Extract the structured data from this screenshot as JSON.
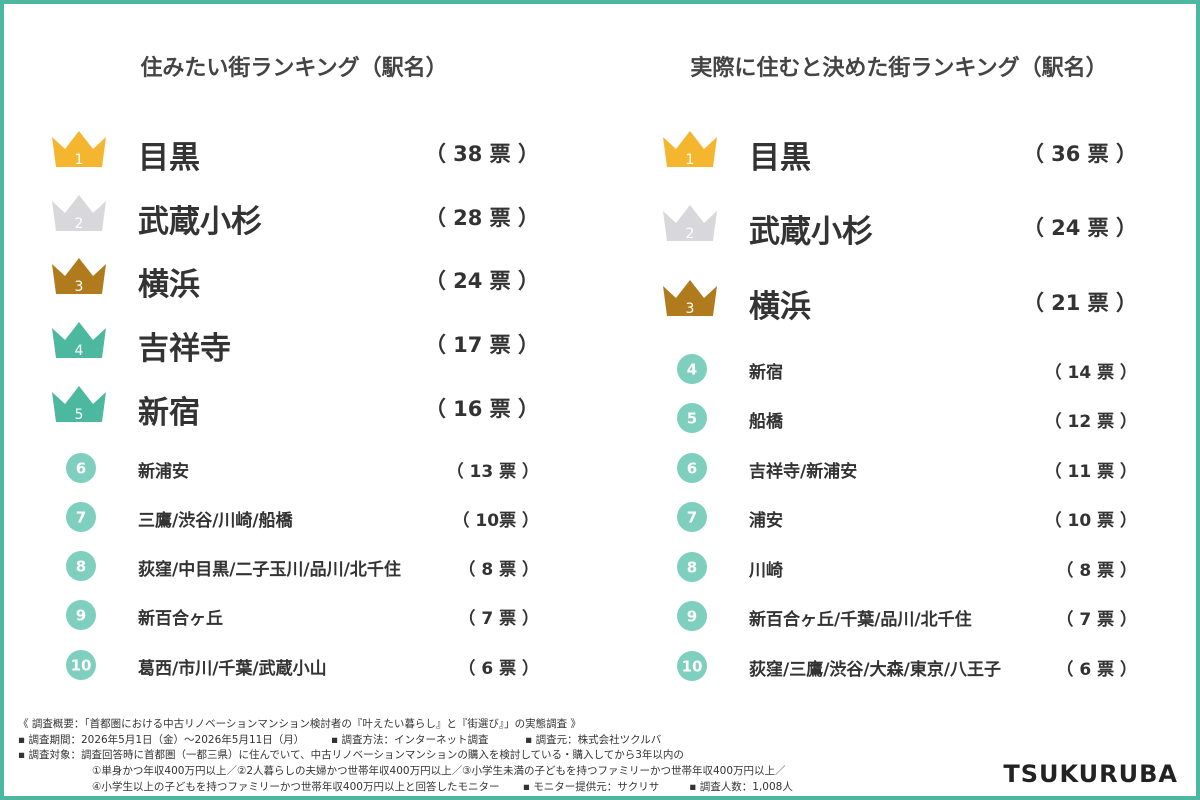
{
  "left": {
    "title": "住みたい街ランキング（駅名）",
    "items": [
      {
        "rank": "1",
        "name": "目黒",
        "votes": "（ 38 票 ）",
        "icon": "crown",
        "color": "#f4b52f"
      },
      {
        "rank": "2",
        "name": "武蔵小杉",
        "votes": "（ 28 票 ）",
        "icon": "crown",
        "color": "#d8d8dc"
      },
      {
        "rank": "3",
        "name": "横浜",
        "votes": "（ 24 票 ）",
        "icon": "crown",
        "color": "#b07b1c"
      },
      {
        "rank": "4",
        "name": "吉祥寺",
        "votes": "（ 17 票 ）",
        "icon": "crown",
        "color": "#4cb8a0"
      },
      {
        "rank": "5",
        "name": "新宿",
        "votes": "（ 16 票 ）",
        "icon": "crown",
        "color": "#4cb8a0"
      },
      {
        "rank": "6",
        "name": "新浦安",
        "votes": "（ 13 票 ）",
        "icon": "circle",
        "color": "#7fcfbf"
      },
      {
        "rank": "7",
        "name": "三鷹/渋谷/川崎/船橋",
        "votes": "（ 10票 ）",
        "icon": "circle",
        "color": "#7fcfbf"
      },
      {
        "rank": "8",
        "name": "荻窪/中目黒/二子玉川/品川/北千住",
        "votes": "（ 8 票 ）",
        "icon": "circle",
        "color": "#7fcfbf"
      },
      {
        "rank": "9",
        "name": "新百合ヶ丘",
        "votes": "（ 7 票 ）",
        "icon": "circle",
        "color": "#7fcfbf"
      },
      {
        "rank": "10",
        "name": "葛西/市川/千葉/武蔵小山",
        "votes": "（ 6 票 ）",
        "icon": "circle",
        "color": "#7fcfbf"
      }
    ]
  },
  "right": {
    "title": "実際に住むと決めた街ランキング（駅名）",
    "items": [
      {
        "rank": "1",
        "name": "目黒",
        "votes": "（ 36 票 ）",
        "icon": "crown",
        "color": "#f4b52f"
      },
      {
        "rank": "2",
        "name": "武蔵小杉",
        "votes": "（ 24 票 ）",
        "icon": "crown",
        "color": "#d8d8dc"
      },
      {
        "rank": "3",
        "name": "横浜",
        "votes": "（ 21 票 ）",
        "icon": "crown",
        "color": "#b07b1c"
      },
      {
        "rank": "4",
        "name": "新宿",
        "votes": "（ 14 票 ）",
        "icon": "circle",
        "color": "#7fcfbf"
      },
      {
        "rank": "5",
        "name": "船橋",
        "votes": "（ 12 票 ）",
        "icon": "circle",
        "color": "#7fcfbf"
      },
      {
        "rank": "6",
        "name": "吉祥寺/新浦安",
        "votes": "（ 11 票 ）",
        "icon": "circle",
        "color": "#7fcfbf"
      },
      {
        "rank": "7",
        "name": "浦安",
        "votes": "（ 10 票 ）",
        "icon": "circle",
        "color": "#7fcfbf"
      },
      {
        "rank": "8",
        "name": "川崎",
        "votes": "（ 8 票 ）",
        "icon": "circle",
        "color": "#7fcfbf"
      },
      {
        "rank": "9",
        "name": "新百合ヶ丘/千葉/品川/北千住",
        "votes": "（ 7 票 ）",
        "icon": "circle",
        "color": "#7fcfbf"
      },
      {
        "rank": "10",
        "name": "荻窪/三鷹/渋谷/大森/東京/八王子",
        "votes": "（ 6 票 ）",
        "icon": "circle",
        "color": "#7fcfbf"
      }
    ]
  },
  "footer": {
    "lines": [
      "《 調査概要：「首都圏における中古リノベーションマンション検討者の『叶えたい暮らし』と『街選び』」の実態調査 》",
      "▪ 調査期間：2026年5月1日（金）～2026年5月11日（月）        ▪ 調査方法：インターネット調査           ▪ 調査元：株式会社ツクルバ",
      "▪ 調査対象：調査回答時に首都圏（一都三県）に住んでいて、中古リノベーションマンションの購入を検討している・購入してから3年以内の",
      "①単身かつ年収400万円以上／②2人暮らしの夫婦かつ世帯年収400万円以上／③小学生未満の子どもを持つファミリーかつ世帯年収400万円以上／",
      "④小学生以上の子どもを持つファミリーかつ世帯年収400万円以上と回答したモニター       ▪ モニター提供元：サクリサ         ▪ 調査人数：1,008人"
    ],
    "logo": "TSUKURUBA"
  }
}
